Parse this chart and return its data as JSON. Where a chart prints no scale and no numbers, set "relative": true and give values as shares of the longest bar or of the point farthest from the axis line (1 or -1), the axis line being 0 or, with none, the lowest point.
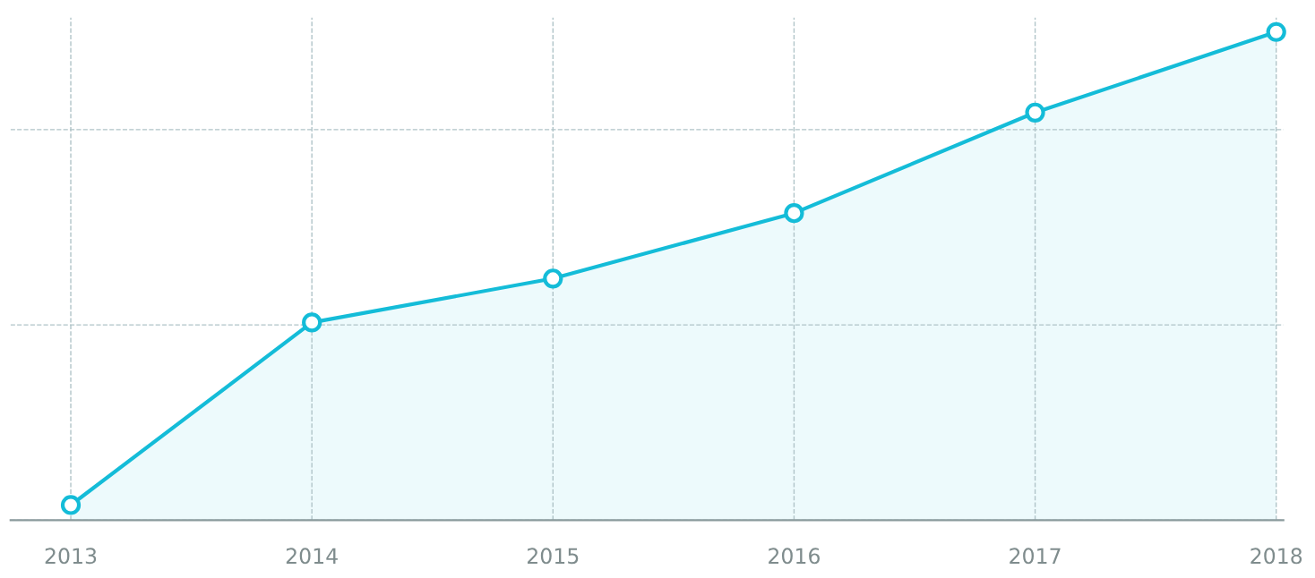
{
  "chart_data": {
    "type": "area",
    "relative": true,
    "categories": [
      "2013",
      "2014",
      "2015",
      "2016",
      "2017",
      "2018"
    ],
    "series": [
      {
        "color": "#14bcd8",
        "values": [
          0.031,
          0.405,
          0.495,
          0.629,
          0.835,
          1
        ]
      }
    ],
    "grid": true,
    "tick_labels": "x",
    "marker": "circle",
    "line_style": "solid"
  }
}
